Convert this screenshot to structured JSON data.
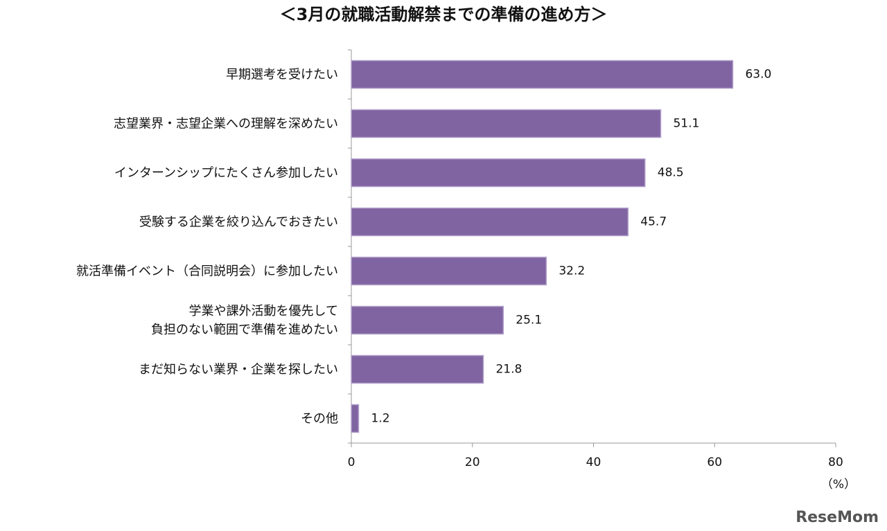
{
  "chart_data": {
    "type": "barh",
    "title": "＜3月の就職活動解禁までの準備の進め方＞",
    "categories": [
      "早期選考を受けたい",
      "志望業界・志望企業への理解を深めたい",
      "インターンシップにたくさん参加したい",
      "受験する企業を絞り込んでおきたい",
      "就活準備イベント（合同説明会）に参加したい",
      "学業や課外活動を優先して\n負担のない範囲で準備を進めたい",
      "まだ知らない業界・企業を探したい",
      "その他"
    ],
    "values": [
      63.0,
      51.1,
      48.5,
      45.7,
      32.2,
      25.1,
      21.8,
      1.2
    ],
    "value_labels": [
      "63.0",
      "51.1",
      "48.5",
      "45.7",
      "32.2",
      "25.1",
      "21.8",
      "1.2"
    ],
    "color": "#8064a2",
    "xlim": [
      0,
      80
    ],
    "xticks": [
      0,
      20,
      40,
      60,
      80
    ],
    "x_label": "（%）",
    "watermark": "ReseMom"
  }
}
